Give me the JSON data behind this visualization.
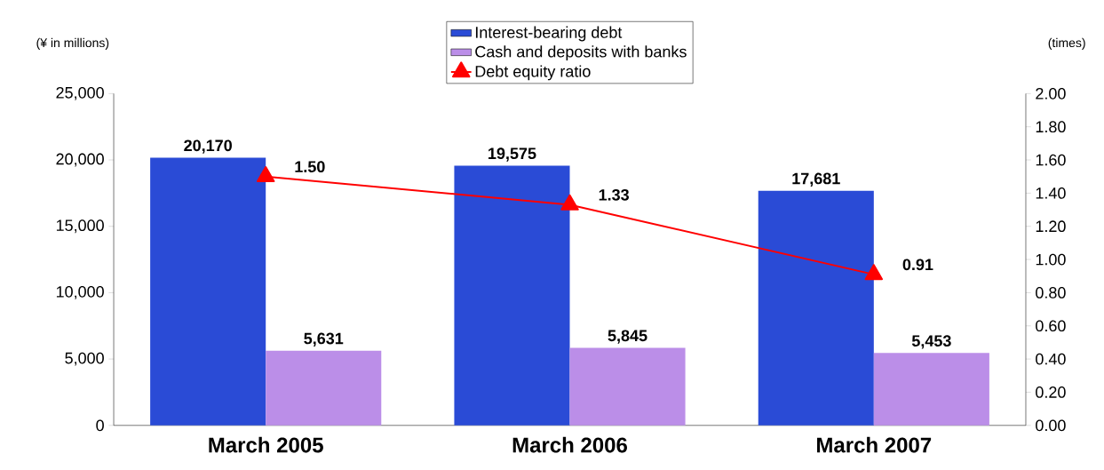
{
  "chart_data": {
    "type": "bar",
    "categories": [
      "March 2005",
      "March 2006",
      "March 2007"
    ],
    "ylabel": "(¥ in millions)",
    "y2label": "(times)",
    "series": [
      {
        "name": "Interest-bearing debt",
        "color": "#2a4bd6",
        "values": [
          20170,
          19575,
          17681
        ],
        "value_labels": [
          "20,170",
          "19,575",
          "17,681"
        ]
      },
      {
        "name": "Cash and deposits with banks",
        "color": "#bb8ee8",
        "values": [
          5631,
          5845,
          5453
        ],
        "value_labels": [
          "5,631",
          "5,845",
          "5,453"
        ]
      },
      {
        "name": "Debt equity ratio",
        "type": "line",
        "axis": "y2",
        "color": "#ff0000",
        "marker": "triangle",
        "line_style": "solid",
        "values": [
          1.5,
          1.33,
          0.91
        ],
        "value_labels": [
          "1.50",
          "1.33",
          "0.91"
        ]
      }
    ],
    "ylim": [
      0,
      25000
    ],
    "yticks": [
      {
        "value": 0,
        "label": "0"
      },
      {
        "value": 5000,
        "label": "5,000"
      },
      {
        "value": 10000,
        "label": "10,000"
      },
      {
        "value": 15000,
        "label": "15,000"
      },
      {
        "value": 20000,
        "label": "20,000"
      },
      {
        "value": 25000,
        "label": "25,000"
      }
    ],
    "y2lim": [
      0,
      2
    ],
    "y2ticks": [
      {
        "value": 0,
        "label": "0.00"
      },
      {
        "value": 0.2,
        "label": "0.20"
      },
      {
        "value": 0.4,
        "label": "0.40"
      },
      {
        "value": 0.6,
        "label": "0.60"
      },
      {
        "value": 0.8,
        "label": "0.80"
      },
      {
        "value": 1,
        "label": "1.00"
      },
      {
        "value": 1.2,
        "label": "1.20"
      },
      {
        "value": 1.4,
        "label": "1.40"
      },
      {
        "value": 1.6,
        "label": "1.60"
      },
      {
        "value": 1.8,
        "label": "1.80"
      },
      {
        "value": 2,
        "label": "2.00"
      }
    ],
    "legend": "top",
    "grid": false
  }
}
